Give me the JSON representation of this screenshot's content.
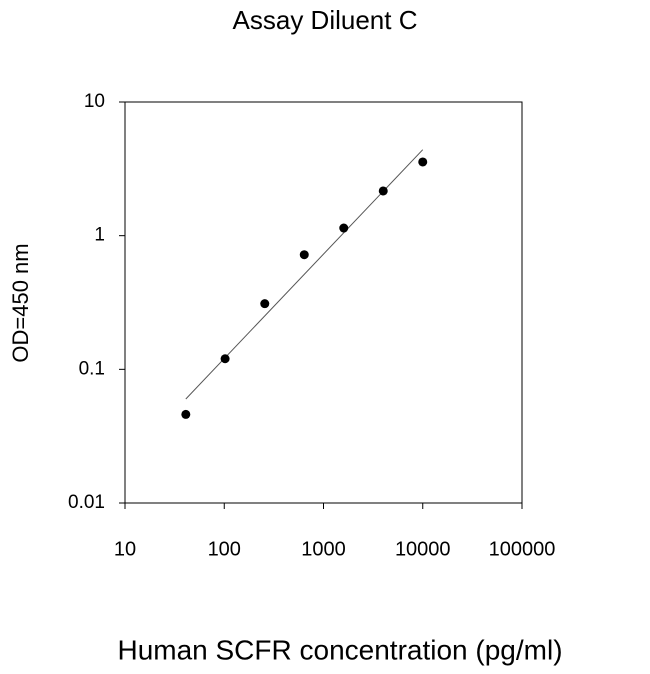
{
  "chart_data": {
    "type": "scatter",
    "title": "Assay Diluent C",
    "x_label": "Human SCFR concentration (pg/ml)",
    "y_label": "OD=450 nm",
    "x": [
      41,
      102,
      256,
      640,
      1600,
      4000,
      10000
    ],
    "values": [
      0.046,
      0.12,
      0.31,
      0.72,
      1.14,
      2.16,
      3.56
    ],
    "color": "#000000",
    "fit": {
      "x": [
        41,
        10000
      ],
      "values": [
        0.06,
        4.4
      ],
      "color": "#555555"
    },
    "xlim": [
      10,
      100000
    ],
    "ylim": [
      0.01,
      10
    ],
    "xticks": [
      10,
      100,
      1000,
      10000,
      100000
    ],
    "yticks": [
      0.01,
      0.1,
      1,
      10
    ],
    "xlog": true,
    "ylog": true,
    "grid": false
  }
}
